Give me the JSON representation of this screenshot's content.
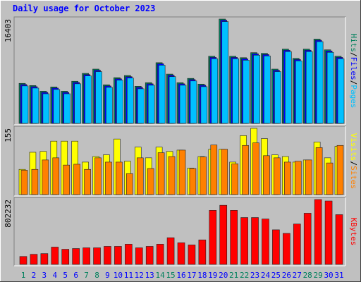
{
  "chart_data": [
    {
      "type": "bar",
      "title": "Daily usage for October 2023",
      "ylim": [
        0,
        16403
      ],
      "legend_separator": "/",
      "series": [
        {
          "name": "Hits",
          "color": "#00805c",
          "values": [
            6290,
            5950,
            5055,
            5730,
            5055,
            6625,
            7860,
            8535,
            6065,
            7190,
            7525,
            5840,
            6400,
            9545,
            7750,
            6400,
            7075,
            6175,
            10555,
            16403,
            10555,
            10330,
            11120,
            11005,
            8535,
            11680,
            10220,
            11680,
            13250,
            11565,
            10555
          ]
        },
        {
          "name": "Files",
          "color": "#0000ff",
          "values": [
            6110,
            5770,
            4875,
            5550,
            4875,
            6445,
            7680,
            8355,
            5885,
            7010,
            7345,
            5660,
            6220,
            9365,
            7570,
            6220,
            6895,
            5995,
            10375,
            16223,
            10375,
            10150,
            10940,
            10825,
            8355,
            11500,
            10040,
            11500,
            13070,
            11385,
            10375
          ]
        },
        {
          "name": "Pages",
          "color": "#00c0ff",
          "values": [
            5890,
            5550,
            4655,
            5330,
            4655,
            6225,
            7460,
            8135,
            5665,
            6790,
            7125,
            5440,
            6000,
            9145,
            7350,
            6000,
            6675,
            5775,
            10155,
            16003,
            10155,
            9930,
            10720,
            10605,
            8135,
            11280,
            9820,
            11280,
            12850,
            11165,
            10155
          ]
        }
      ]
    },
    {
      "type": "bar",
      "ylim": [
        0,
        155
      ],
      "legend_separator": "/",
      "series": [
        {
          "name": "Visits",
          "color": "#ffff00",
          "values": [
            59,
            99,
            101,
            125,
            125,
            125,
            76,
            89,
            93,
            130,
            78,
            111,
            86,
            111,
            101,
            104,
            62,
            89,
            106,
            106,
            76,
            138,
            155,
            131,
            93,
            89,
            76,
            81,
            123,
            86,
            113
          ]
        },
        {
          "name": "Sites",
          "color": "#ff8000",
          "values": [
            57,
            59,
            81,
            86,
            69,
            71,
            59,
            86,
            76,
            76,
            49,
            86,
            61,
            98,
            89,
            104,
            61,
            88,
            116,
            106,
            72,
            115,
            121,
            91,
            86,
            76,
            78,
            81,
            110,
            74,
            115
          ]
        }
      ]
    },
    {
      "type": "bar",
      "ylim": [
        0,
        802232
      ],
      "series": [
        {
          "name": "KBytes",
          "color": "#ff0000",
          "values": [
            98000,
            124800,
            133700,
            213900,
            187200,
            196100,
            205000,
            205000,
            222900,
            222900,
            249600,
            205000,
            222900,
            249600,
            329800,
            267400,
            240700,
            303100,
            668600,
            731000,
            668600,
            579400,
            579400,
            561600,
            427900,
            383300,
            499200,
            632900,
            802232,
            784400,
            615100
          ]
        }
      ],
      "categories": [
        "1",
        "2",
        "3",
        "4",
        "5",
        "6",
        "7",
        "8",
        "9",
        "10",
        "11",
        "12",
        "13",
        "14",
        "15",
        "16",
        "17",
        "18",
        "19",
        "20",
        "21",
        "22",
        "23",
        "24",
        "25",
        "26",
        "27",
        "28",
        "29",
        "30",
        "31"
      ],
      "category_colors": [
        "#00805c",
        "#0000ff",
        "#0000ff",
        "#0000ff",
        "#0000ff",
        "#0000ff",
        "#00805c",
        "#00805c",
        "#0000ff",
        "#0000ff",
        "#0000ff",
        "#0000ff",
        "#0000ff",
        "#00805c",
        "#00805c",
        "#0000ff",
        "#0000ff",
        "#0000ff",
        "#0000ff",
        "#0000ff",
        "#00805c",
        "#00805c",
        "#0000ff",
        "#0000ff",
        "#0000ff",
        "#0000ff",
        "#0000ff",
        "#00805c",
        "#00805c",
        "#0000ff",
        "#0000ff"
      ]
    }
  ]
}
